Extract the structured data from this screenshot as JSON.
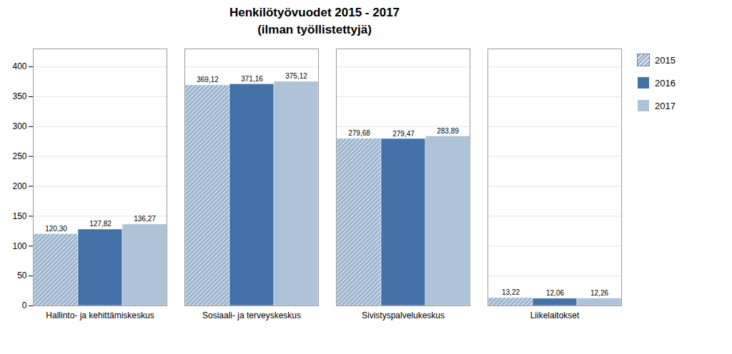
{
  "chart_data": {
    "type": "bar",
    "title": "Henkilötyövuodet 2015 - 2017",
    "subtitle": "(ilman työllistettyjä)",
    "categories": [
      "Hallinto- ja kehittämiskeskus",
      "Sosiaali- ja terveyskeskus",
      "Sivistyspalvelukeskus",
      "Liikelaitokset"
    ],
    "series": [
      {
        "name": "2015",
        "color": "#9db5cf",
        "values": [
          120.3,
          369.12,
          279.68,
          13.22
        ],
        "value_labels": [
          "120,30",
          "369,12",
          "279,68",
          "13,22"
        ]
      },
      {
        "name": "2016",
        "color": "#4472a8",
        "values": [
          127.82,
          371.16,
          279.47,
          12.06
        ],
        "value_labels": [
          "127,82",
          "371,16",
          "279,47",
          "12,06"
        ]
      },
      {
        "name": "2017",
        "color": "#aec3d8",
        "values": [
          136.27,
          375.12,
          283.89,
          12.26
        ],
        "value_labels": [
          "136,27",
          "375,12",
          "283,89",
          "12,26"
        ]
      }
    ],
    "ylim": [
      0,
      430
    ],
    "yticks": [
      0,
      50,
      100,
      150,
      200,
      250,
      300,
      350,
      400
    ],
    "grid": true,
    "legend": "right",
    "data_labels": true
  }
}
